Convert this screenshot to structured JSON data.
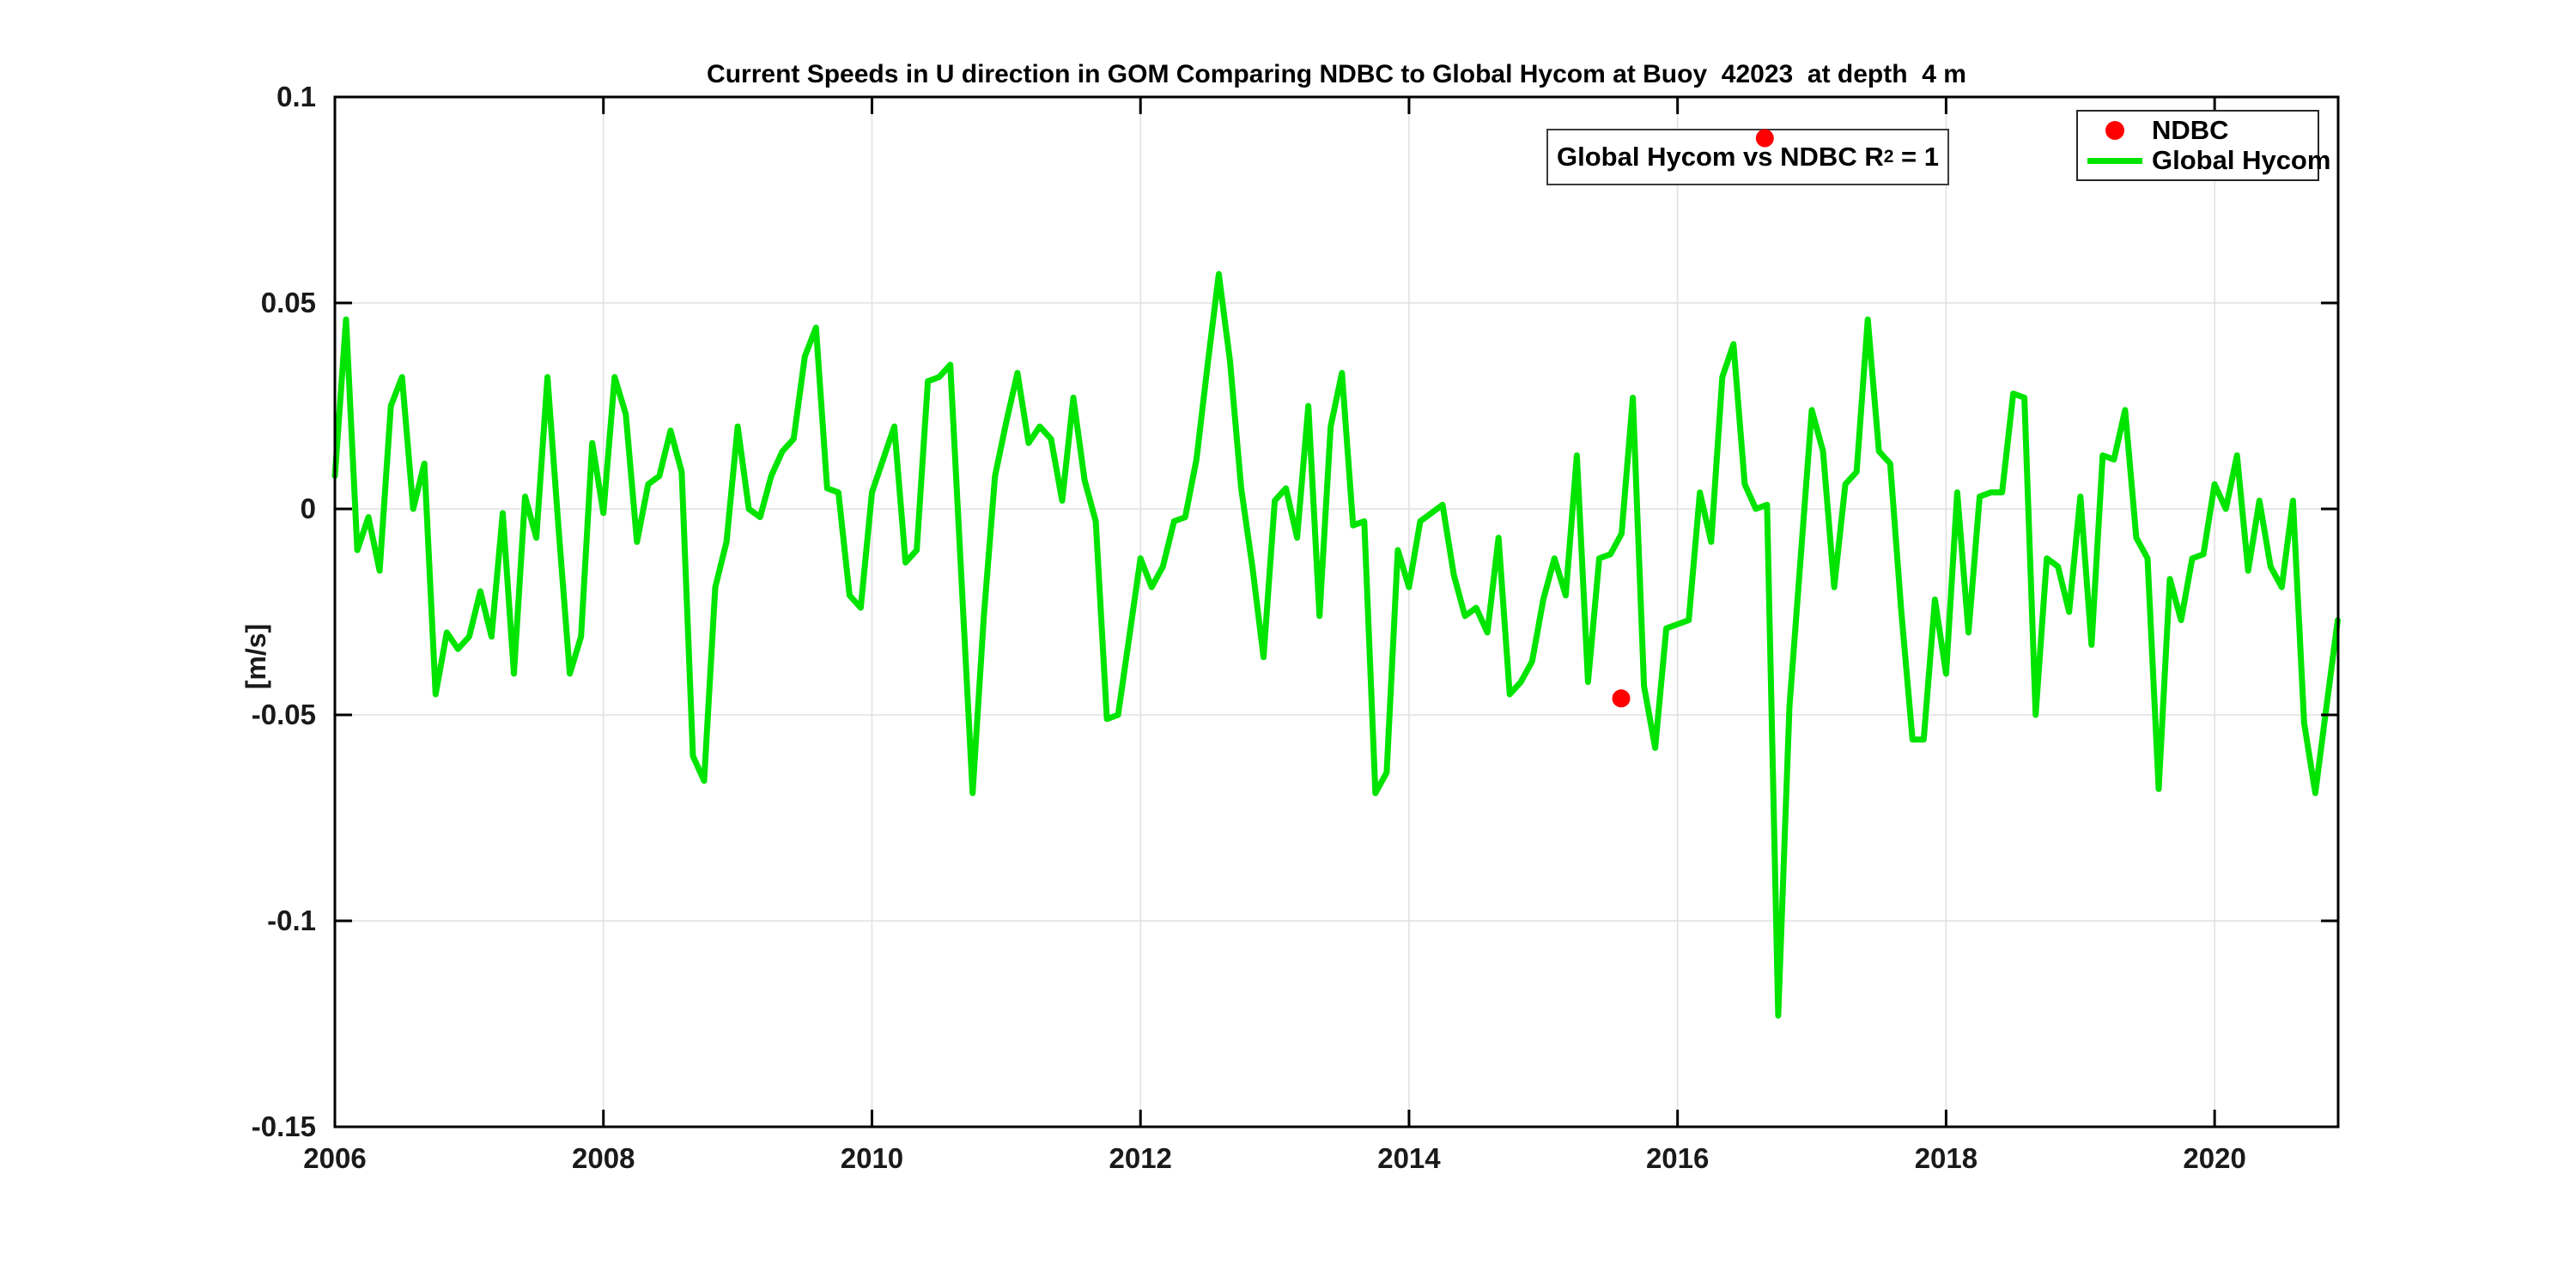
{
  "figure": {
    "title": "Current Speeds in U direction in GOM Comparing NDBC to Global Hycom at Buoy  42023  at depth  4 m",
    "ylabel": "[m/s]"
  },
  "legend": {
    "items": [
      {
        "label": "NDBC",
        "marker": "dot-icon",
        "color": "#ff0000"
      },
      {
        "label": "Global Hycom",
        "marker": "line-icon",
        "color": "#00e400"
      }
    ]
  },
  "annotation": {
    "prefix": "Global Hycom vs NDBC R",
    "sup": "2",
    "suffix": " = 1"
  },
  "colors": {
    "line_green": "#00e400",
    "marker_red": "#ff0000",
    "grid": "#e0e0e0",
    "axis": "#000000",
    "tick_label": "#1a1a1a"
  },
  "chart_data": {
    "type": "line",
    "title": "Current Speeds in U direction in GOM Comparing NDBC to Global Hycom at Buoy  42023  at depth  4 m",
    "xlabel": "",
    "ylabel": "[m/s]",
    "xlim": [
      2006,
      2020.92
    ],
    "ylim": [
      -0.15,
      0.1
    ],
    "xticks": [
      2006,
      2008,
      2010,
      2012,
      2014,
      2016,
      2018,
      2020
    ],
    "yticks": [
      0.1,
      0.05,
      0,
      -0.05,
      -0.1,
      -0.15
    ],
    "grid": true,
    "legend_position": "top-right",
    "series": [
      {
        "name": "NDBC",
        "type": "scatter",
        "color": "#ff0000",
        "points": [
          [
            2015.58,
            -0.046
          ],
          [
            2016.65,
            0.09
          ]
        ]
      },
      {
        "name": "Global Hycom",
        "type": "line",
        "color": "#00e400",
        "x_start": 2006.0,
        "x_step_years": 0.0833333,
        "values": [
          0.008,
          0.046,
          -0.01,
          -0.002,
          -0.015,
          0.025,
          0.032,
          0.0,
          0.011,
          -0.045,
          -0.03,
          -0.034,
          -0.031,
          -0.02,
          -0.031,
          -0.001,
          -0.04,
          0.003,
          -0.007,
          0.032,
          -0.005,
          -0.04,
          -0.031,
          0.016,
          -0.001,
          0.032,
          0.023,
          -0.008,
          0.006,
          0.008,
          0.019,
          0.009,
          -0.06,
          -0.066,
          -0.019,
          -0.008,
          0.02,
          0.0,
          -0.002,
          0.008,
          0.014,
          0.017,
          0.037,
          0.044,
          0.005,
          0.004,
          -0.021,
          -0.024,
          0.004,
          0.012,
          0.02,
          -0.013,
          -0.01,
          0.031,
          0.032,
          0.035,
          -0.017,
          -0.069,
          -0.026,
          0.008,
          0.021,
          0.033,
          0.016,
          0.02,
          0.017,
          0.002,
          0.027,
          0.007,
          -0.003,
          -0.051,
          -0.05,
          -0.031,
          -0.012,
          -0.019,
          -0.014,
          -0.003,
          -0.002,
          0.012,
          0.035,
          0.057,
          0.036,
          0.005,
          -0.014,
          -0.036,
          0.002,
          0.005,
          -0.007,
          0.025,
          -0.026,
          0.02,
          0.033,
          -0.004,
          -0.003,
          -0.069,
          -0.064,
          -0.01,
          -0.019,
          -0.003,
          -0.001,
          0.001,
          -0.016,
          -0.026,
          -0.024,
          -0.03,
          -0.007,
          -0.045,
          -0.042,
          -0.037,
          -0.022,
          -0.012,
          -0.021,
          0.013,
          -0.042,
          -0.012,
          -0.011,
          -0.006,
          0.027,
          -0.043,
          -0.058,
          -0.029,
          -0.028,
          -0.027,
          0.004,
          -0.008,
          0.032,
          0.04,
          0.006,
          0.0,
          0.001,
          -0.123,
          -0.048,
          -0.012,
          0.024,
          0.014,
          -0.019,
          0.006,
          0.009,
          0.046,
          0.014,
          0.011,
          -0.025,
          -0.056,
          -0.056,
          -0.022,
          -0.04,
          0.004,
          -0.03,
          0.003,
          0.004,
          0.004,
          0.028,
          0.027,
          -0.05,
          -0.012,
          -0.014,
          -0.025,
          0.003,
          -0.033,
          0.013,
          0.012,
          0.024,
          -0.007,
          -0.012,
          -0.068,
          -0.017,
          -0.027,
          -0.012,
          -0.011,
          0.006,
          0.0,
          0.013,
          -0.015,
          0.002,
          -0.014,
          -0.019,
          0.002,
          -0.052,
          -0.069,
          -0.048,
          -0.027
        ]
      }
    ],
    "annotation_text": "Global Hycom vs NDBC R^2 = 1"
  }
}
